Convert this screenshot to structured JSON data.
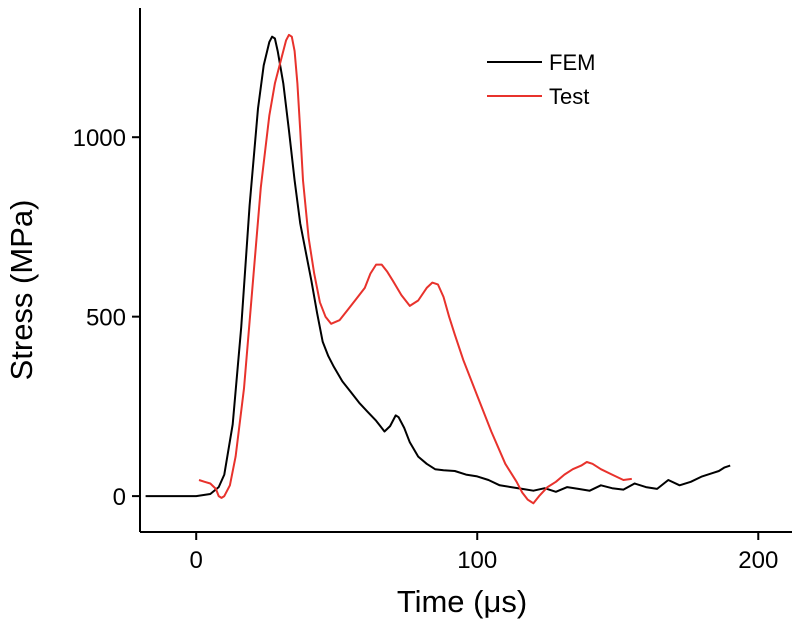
{
  "chart_data": {
    "type": "line",
    "title": "",
    "xlabel": "Time (μs)",
    "ylabel": "Stress (MPa)",
    "xlim": [
      -20,
      212
    ],
    "ylim": [
      -100,
      1360
    ],
    "xticks": [
      0,
      100,
      200
    ],
    "yticks": [
      0,
      500,
      1000
    ],
    "xtick_labels": [
      "0",
      "100",
      "200"
    ],
    "ytick_labels": [
      "0",
      "500",
      "1000"
    ],
    "grid": false,
    "legend_position": "top-right",
    "series": [
      {
        "name": "FEM",
        "color": "#000000",
        "x": [
          -18,
          0,
          5,
          8,
          10,
          13,
          16,
          19,
          22,
          24,
          26,
          27,
          28,
          29,
          31,
          33,
          35,
          37,
          39,
          41,
          43,
          45,
          47,
          49,
          52,
          55,
          58,
          61,
          64,
          67,
          69,
          71,
          72,
          74,
          76,
          79,
          82,
          85,
          88,
          92,
          96,
          100,
          104,
          108,
          112,
          116,
          120,
          124,
          128,
          132,
          136,
          140,
          144,
          148,
          152,
          156,
          160,
          164,
          168,
          172,
          176,
          180,
          184,
          186,
          188,
          190
        ],
        "y": [
          0,
          0,
          6,
          25,
          60,
          200,
          470,
          810,
          1080,
          1200,
          1265,
          1280,
          1275,
          1240,
          1150,
          1020,
          880,
          760,
          680,
          600,
          510,
          430,
          390,
          360,
          320,
          290,
          260,
          235,
          210,
          180,
          195,
          225,
          220,
          190,
          150,
          110,
          90,
          75,
          72,
          70,
          60,
          55,
          45,
          30,
          25,
          20,
          15,
          22,
          12,
          25,
          20,
          15,
          30,
          22,
          18,
          35,
          25,
          20,
          45,
          30,
          40,
          55,
          65,
          70,
          80,
          85
        ]
      },
      {
        "name": "Test",
        "color": "#e8322c",
        "x": [
          1,
          3,
          5,
          7,
          8,
          9,
          10,
          12,
          14,
          17,
          20,
          23,
          26,
          28,
          30,
          32,
          33,
          34,
          35,
          36,
          37,
          38,
          40,
          42,
          44,
          46,
          48,
          51,
          54,
          57,
          60,
          62,
          64,
          66,
          68,
          70,
          73,
          76,
          79,
          82,
          84,
          86,
          88,
          90,
          92,
          95,
          100,
          105,
          110,
          114,
          116,
          118,
          119,
          120,
          122,
          125,
          128,
          131,
          134,
          137,
          139,
          141,
          144,
          148,
          152,
          155
        ],
        "y": [
          45,
          40,
          35,
          20,
          0,
          -5,
          0,
          30,
          110,
          300,
          580,
          860,
          1060,
          1150,
          1210,
          1270,
          1285,
          1280,
          1240,
          1150,
          1020,
          880,
          720,
          620,
          540,
          500,
          480,
          490,
          520,
          550,
          580,
          620,
          645,
          645,
          625,
          600,
          560,
          530,
          545,
          580,
          595,
          590,
          555,
          500,
          450,
          380,
          280,
          180,
          90,
          40,
          10,
          -10,
          -15,
          -20,
          0,
          25,
          40,
          60,
          75,
          85,
          95,
          90,
          75,
          60,
          45,
          48
        ]
      }
    ]
  }
}
